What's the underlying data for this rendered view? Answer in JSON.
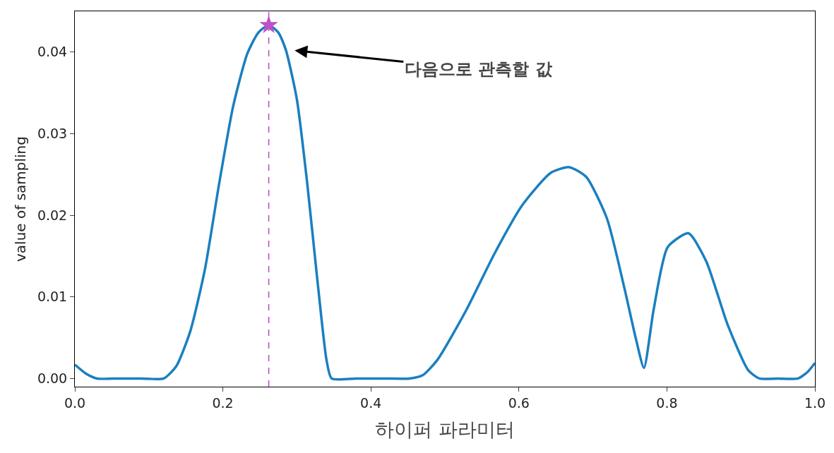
{
  "chart_data": {
    "type": "line",
    "xlabel": "하이퍼 파라미터",
    "ylabel": "value of sampling",
    "xlim": [
      0.0,
      1.0
    ],
    "ylim": [
      -0.001,
      0.045
    ],
    "xticks": [
      {
        "value": 0.0,
        "label": "0.0"
      },
      {
        "value": 0.2,
        "label": "0.2"
      },
      {
        "value": 0.4,
        "label": "0.4"
      },
      {
        "value": 0.6,
        "label": "0.6"
      },
      {
        "value": 0.8,
        "label": "0.8"
      },
      {
        "value": 1.0,
        "label": "1.0"
      }
    ],
    "yticks": [
      {
        "value": 0.0,
        "label": "0.00"
      },
      {
        "value": 0.01,
        "label": "0.01"
      },
      {
        "value": 0.02,
        "label": "0.02"
      },
      {
        "value": 0.03,
        "label": "0.03"
      },
      {
        "value": 0.04,
        "label": "0.04"
      }
    ],
    "grid": false,
    "series": [
      {
        "color": "#1a7fc0",
        "marker": "none",
        "line_style": "solid",
        "x": [
          0.0,
          0.015,
          0.03,
          0.06,
          0.09,
          0.12,
          0.137,
          0.156,
          0.176,
          0.195,
          0.214,
          0.233,
          0.248,
          0.262,
          0.275,
          0.285,
          0.3,
          0.314,
          0.328,
          0.34,
          0.347,
          0.38,
          0.42,
          0.452,
          0.47,
          0.49,
          0.529,
          0.567,
          0.605,
          0.643,
          0.668,
          0.691,
          0.719,
          0.743,
          0.758,
          0.769,
          0.782,
          0.801,
          0.829,
          0.853,
          0.882,
          0.91,
          0.925,
          0.95,
          0.977,
          0.99,
          1.0
        ],
        "values": [
          0.0017,
          0.0006,
          0.0,
          0.0,
          0.0,
          0.0,
          0.0015,
          0.0058,
          0.0135,
          0.0239,
          0.0334,
          0.0398,
          0.0424,
          0.0433,
          0.0424,
          0.0403,
          0.0342,
          0.0239,
          0.0118,
          0.0023,
          0.0,
          0.0,
          0.0,
          0.0,
          0.0004,
          0.0023,
          0.0084,
          0.0153,
          0.0213,
          0.0252,
          0.0259,
          0.0247,
          0.0196,
          0.0109,
          0.0049,
          0.0013,
          0.0084,
          0.0161,
          0.0178,
          0.0144,
          0.0066,
          0.001,
          0.0,
          0.0,
          0.0,
          0.0008,
          0.0019
        ]
      },
      {
        "type": "scatter",
        "color": "#c050c8",
        "marker": "star",
        "x": [
          0.262
        ],
        "values": [
          0.0433
        ]
      }
    ],
    "ref_lines": [
      {
        "axis": "x",
        "value": 0.262,
        "color": "#c050c8",
        "line_style": "dashed"
      }
    ],
    "annotations": [
      "다음으로 관측할 값"
    ]
  }
}
